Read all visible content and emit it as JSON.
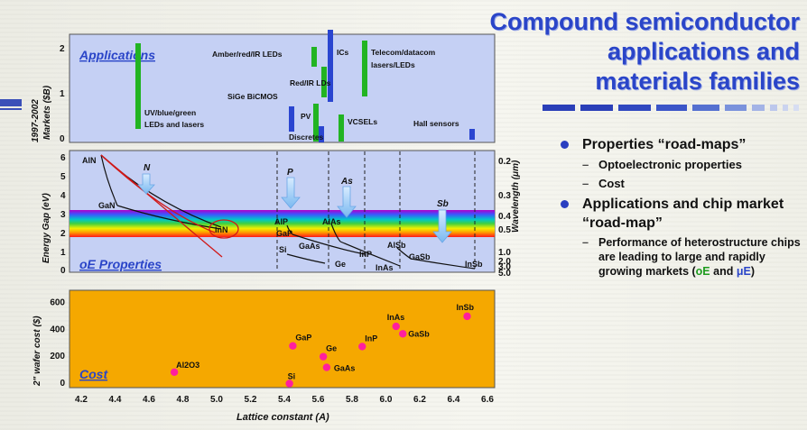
{
  "title": {
    "line1": "Compound semiconductor",
    "line2": "applications and",
    "line3": "materials families"
  },
  "bullets": [
    {
      "text": "Properties “road-maps”",
      "subs": [
        "Optoelectronic properties",
        "Cost"
      ]
    },
    {
      "text": "Applications and chip market “road-map”"
    }
  ],
  "bullet2_sub": {
    "before": "Performance of heterostructure chips are leading to large and rapidly growing markets (",
    "oe": "oE",
    "and": " and ",
    "mue": "μE",
    "after": ")"
  },
  "applications_panel": {
    "title": "Applications",
    "ylabel_line1": "1997-2002",
    "ylabel_line2": "Markets ($B)",
    "yticks": [
      "0",
      "1",
      "2"
    ],
    "labels": {
      "amber": "Amber/red/IR LEDs",
      "ics": "ICs",
      "telecom1": "Telecom/datacom",
      "telecom2": "lasers/LEDs",
      "red_ir": "Red/IR LDs",
      "sige": "SiGe BiCMOS",
      "uv1": "UV/blue/green",
      "uv2": "LEDs and lasers",
      "pv": "PV",
      "vcsels": "VCSELs",
      "discretes": "Discretes",
      "hall": "Hall sensors"
    }
  },
  "oe_panel": {
    "title": "oE Properties",
    "ylabel": "Energy Gap (eV)",
    "y2label": "Wavelength (μm)",
    "yticks": [
      "0",
      "1",
      "2",
      "3",
      "4",
      "5",
      "6"
    ],
    "wl_ticks": [
      "0.2",
      "0.3",
      "0.4",
      "0.5",
      "1.0",
      "2.0",
      "3.0",
      "5.0"
    ],
    "families": [
      "N",
      "P",
      "As",
      "Sb"
    ],
    "materials": [
      "AlN",
      "GaN",
      "InN",
      "AlP",
      "AlAs",
      "GaP",
      "GaAs",
      "Si",
      "Ge",
      "InP",
      "AlSb",
      "GaSb",
      "InAs",
      "InSb"
    ]
  },
  "colors": {
    "title_blue": "#2a45c8",
    "apps_panel": "#c5d0f4",
    "green_bar": "#22b422",
    "blue_bar": "#2a45d0",
    "cost_panel": "#f5a800",
    "point": "#ff1f9e",
    "red_annotation": "#d01818"
  },
  "chart_data": {
    "type": "scatter",
    "title": "Cost",
    "xlabel": "Lattice constant (A)",
    "ylabel": "2\" wafer cost ($)",
    "xlim": [
      4.2,
      6.6
    ],
    "ylim": [
      0,
      650
    ],
    "xticks": [
      4.2,
      4.4,
      4.6,
      4.8,
      5.0,
      5.2,
      5.4,
      5.6,
      5.8,
      6.0,
      6.2,
      6.4,
      6.6
    ],
    "yticks": [
      0,
      200,
      400,
      600
    ],
    "points": [
      {
        "label": "Al2O3",
        "x": 4.75,
        "y": 75
      },
      {
        "label": "Si",
        "x": 5.43,
        "y": -10
      },
      {
        "label": "GaP",
        "x": 5.45,
        "y": 270
      },
      {
        "label": "Ge",
        "x": 5.63,
        "y": 190
      },
      {
        "label": "GaAs",
        "x": 5.65,
        "y": 110
      },
      {
        "label": "InP",
        "x": 5.86,
        "y": 265
      },
      {
        "label": "InAs",
        "x": 6.06,
        "y": 415
      },
      {
        "label": "GaSb",
        "x": 6.1,
        "y": 360
      },
      {
        "label": "InSb",
        "x": 6.48,
        "y": 490
      }
    ],
    "grid": false
  }
}
